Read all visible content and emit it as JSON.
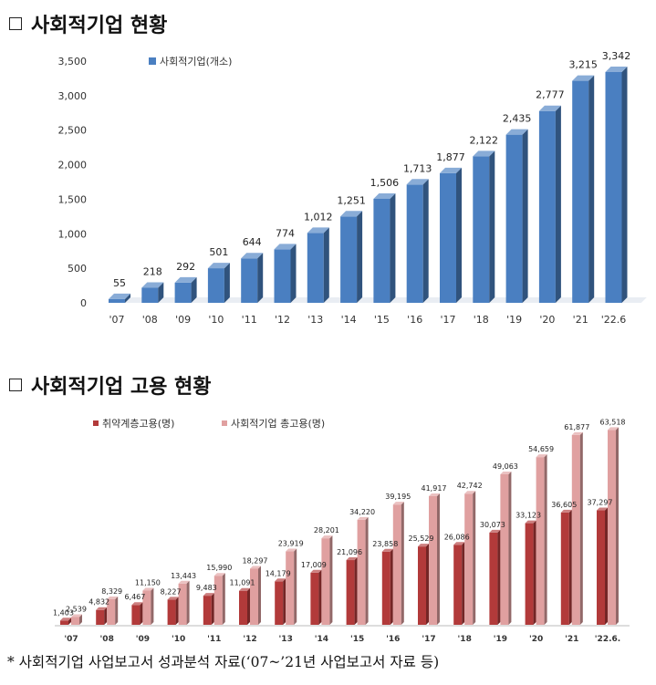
{
  "headings": {
    "business": "사회적기업 현황",
    "employment": "사회적기업 고용 현황"
  },
  "footnote": "* 사회적기업 사업보고서 성과분석 자료(‘07~’21년 사업보고서 자료 등)",
  "chart_data": [
    {
      "type": "bar",
      "style": "3d",
      "categories": [
        "'07",
        "'08",
        "'09",
        "'10",
        "'11",
        "'12",
        "'13",
        "'14",
        "'15",
        "'16",
        "'17",
        "'18",
        "'19",
        "'20",
        "'21",
        "'22.6"
      ],
      "series": [
        {
          "name": "사회적기업(개소)",
          "color": "#4a7fc1",
          "values": [
            55,
            218,
            292,
            501,
            644,
            774,
            1012,
            1251,
            1506,
            1713,
            1877,
            2122,
            2435,
            2777,
            3215,
            3342
          ]
        }
      ],
      "value_labels": [
        "55",
        "218",
        "292",
        "501",
        "644",
        "774",
        "1,012",
        "1,251",
        "1,506",
        "1,713",
        "1,877",
        "2,122",
        "2,435",
        "2,777",
        "3,215",
        "3,342"
      ],
      "y_ticks": [
        "0",
        "500",
        "1,000",
        "1,500",
        "2,000",
        "2,500",
        "3,000",
        "3,500"
      ],
      "ylim": [
        0,
        3500
      ],
      "legend_position": "top-left",
      "grid": false
    },
    {
      "type": "bar",
      "style": "3d",
      "categories": [
        "'07",
        "'08",
        "'09",
        "'10",
        "'11",
        "'12",
        "'13",
        "'14",
        "'15",
        "'16",
        "'17",
        "'18",
        "'19",
        "'20",
        "'21",
        "'22.6."
      ],
      "series": [
        {
          "name": "취약계층고용(명)",
          "color": "#b23a3a",
          "values": [
            1403,
            4832,
            6467,
            8227,
            9483,
            11091,
            14179,
            17009,
            21096,
            23858,
            25529,
            26086,
            30073,
            33123,
            36605,
            37297
          ],
          "labels": [
            "1,403",
            "4,832",
            "6,467",
            "8,227",
            "9,483",
            "11,091",
            "14,179",
            "17,009",
            "21,096",
            "23,858",
            "25,529",
            "26,086",
            "30,073",
            "33,123",
            "36,605",
            "37,297"
          ]
        },
        {
          "name": "사회적기업 총고용(명)",
          "color": "#e0a0a0",
          "values": [
            2539,
            8329,
            11150,
            13443,
            15990,
            18297,
            23919,
            28201,
            34220,
            39195,
            41917,
            42742,
            49063,
            54659,
            61877,
            63518
          ],
          "labels": [
            "2,539",
            "8,329",
            "11,150",
            "13,443",
            "15,990",
            "18,297",
            "23,919",
            "28,201",
            "34,220",
            "39,195",
            "41,917",
            "42,742",
            "49,063",
            "54,659",
            "61,877",
            "63,518"
          ]
        }
      ],
      "legend_position": "top-left",
      "grid": false
    }
  ]
}
